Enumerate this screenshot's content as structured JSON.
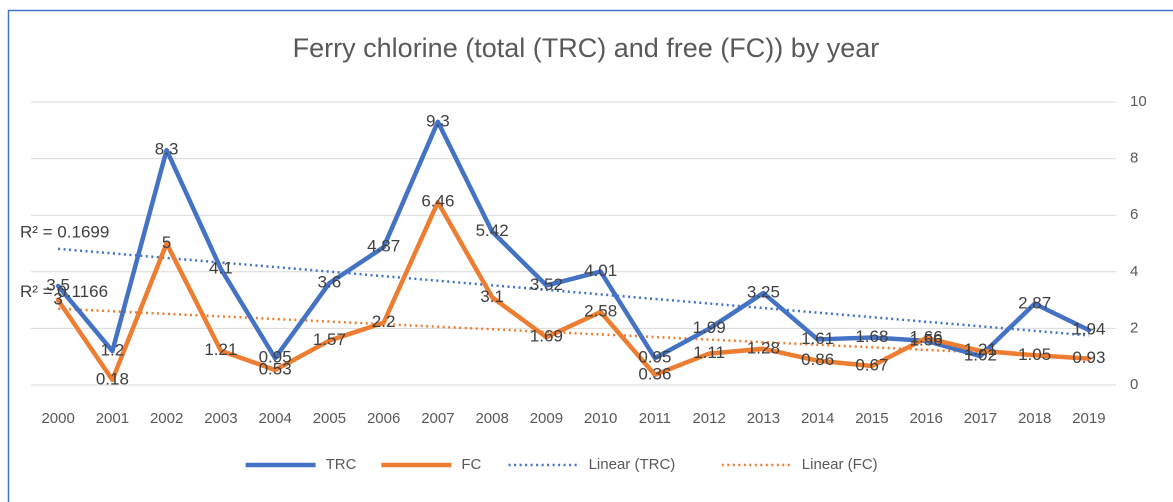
{
  "chart_data": {
    "type": "line",
    "title": "Ferry chlorine (total (TRC) and free (FC)) by year",
    "categories": [
      "2000",
      "2001",
      "2002",
      "2003",
      "2004",
      "2005",
      "2006",
      "2007",
      "2008",
      "2009",
      "2010",
      "2011",
      "2012",
      "2013",
      "2014",
      "2015",
      "2016",
      "2017",
      "2018",
      "2019"
    ],
    "series": [
      {
        "name": "TRC",
        "color": "#4472c4",
        "values": [
          3.5,
          1.2,
          8.3,
          4.1,
          0.95,
          3.6,
          4.87,
          9.3,
          5.42,
          3.52,
          4.01,
          0.95,
          1.99,
          3.25,
          1.61,
          1.68,
          1.56,
          1.02,
          2.87,
          1.94
        ]
      },
      {
        "name": "FC",
        "color": "#ed7d31",
        "values": [
          3,
          0.18,
          5,
          1.21,
          0.53,
          1.57,
          2.2,
          6.46,
          3.1,
          1.69,
          2.58,
          0.36,
          1.11,
          1.28,
          0.86,
          0.67,
          1.66,
          1.21,
          1.05,
          0.93
        ]
      }
    ],
    "trendlines": [
      {
        "name": "Linear (TRC)",
        "series": 0,
        "color": "#4472c4",
        "label": "R² = 0.1699"
      },
      {
        "name": "Linear (FC)",
        "series": 1,
        "color": "#ed7d31",
        "label": "R² = 0.1166"
      }
    ],
    "ylim": [
      0,
      10
    ],
    "yticks": [
      0,
      2,
      4,
      6,
      8,
      10
    ],
    "y_axis_side": "right",
    "grid": true,
    "legend": "bottom"
  }
}
